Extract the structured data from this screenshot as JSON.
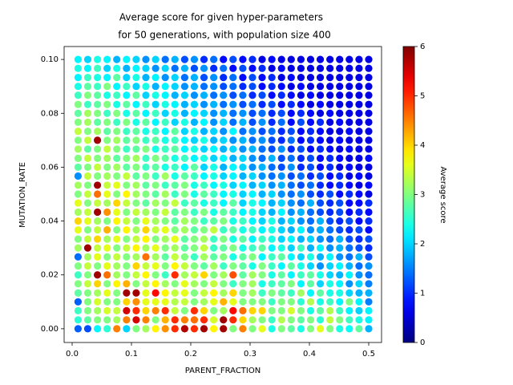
{
  "chart_data": {
    "type": "scatter",
    "title": [
      "Average score for given hyper-parameters",
      "for 50 generations, with population size 400"
    ],
    "x_label": "PARENT_FRACTION",
    "y_label": "MUTATION_RATE",
    "colorbar_label": "Average score",
    "colormap": "jet",
    "xlim": [
      -0.0135,
      0.5216
    ],
    "ylim": [
      -0.0051,
      0.1048
    ],
    "xticks": [
      {
        "value": 0,
        "label": "0.0"
      },
      0.1,
      0.2,
      0.3,
      0.4,
      0.5
    ],
    "yticks": [
      {
        "value": 0,
        "label": "0.00"
      },
      {
        "value": 0.02,
        "label": "0.02"
      },
      {
        "value": 0.04,
        "label": "0.04"
      },
      {
        "value": 0.06,
        "label": "0.06"
      },
      {
        "value": 0.08,
        "label": "0.08"
      },
      {
        "value": 0.1,
        "label": "0.10"
      }
    ],
    "zlim": [
      0,
      6
    ],
    "zticks": [
      0,
      1,
      2,
      3,
      4,
      5,
      6
    ],
    "x": [
      0.01,
      0.0263,
      0.0427,
      0.059,
      0.0753,
      0.0917,
      0.108,
      0.1243,
      0.1407,
      0.157,
      0.1733,
      0.1897,
      0.206,
      0.2223,
      0.2387,
      0.255,
      0.2713,
      0.2877,
      0.304,
      0.3203,
      0.3367,
      0.353,
      0.3693,
      0.3857,
      0.402,
      0.4183,
      0.4347,
      0.451,
      0.4673,
      0.4837,
      0.5
    ],
    "y": [
      0,
      0.0033,
      0.0067,
      0.01,
      0.0133,
      0.0167,
      0.02,
      0.0233,
      0.0267,
      0.03,
      0.0333,
      0.0367,
      0.04,
      0.0433,
      0.0467,
      0.05,
      0.0533,
      0.0567,
      0.06,
      0.0633,
      0.0667,
      0.07,
      0.0733,
      0.0767,
      0.08,
      0.0833,
      0.0867,
      0.09,
      0.0933,
      0.0967,
      0.1
    ],
    "z": [
      [
        1.3,
        1.2,
        2.2,
        2.5,
        4.5,
        2.0,
        3.0,
        3.2,
        3.8,
        4.4,
        5.0,
        5.7,
        5.0,
        5.8,
        3.8,
        5.8,
        3.0,
        4.5,
        3.0,
        3.6,
        2.4,
        3.0,
        2.8,
        2.4,
        3.0,
        3.6,
        3.0,
        2.4,
        2.3,
        2.8,
        1.8
      ],
      [
        2.5,
        2.8,
        3.0,
        3.0,
        3.2,
        4.5,
        5.5,
        4.5,
        3.0,
        4.2,
        5.0,
        4.5,
        4.6,
        5.0,
        3.5,
        5.8,
        5.0,
        4.0,
        3.2,
        3.0,
        2.6,
        3.3,
        3.0,
        2.8,
        3.0,
        2.5,
        3.4,
        3.0,
        2.6,
        2.4,
        2.2
      ],
      [
        2.6,
        3.0,
        3.2,
        3.5,
        3.4,
        5.5,
        5.0,
        4.0,
        4.5,
        5.0,
        3.4,
        3.0,
        5.0,
        4.0,
        3.0,
        3.2,
        5.2,
        4.6,
        4.0,
        4.0,
        3.0,
        3.0,
        3.5,
        3.0,
        2.4,
        2.8,
        3.3,
        2.6,
        2.2,
        2.0,
        2.2
      ],
      [
        1.3,
        3.0,
        3.5,
        3.0,
        3.0,
        4.0,
        4.4,
        3.6,
        3.6,
        3.6,
        3.3,
        3.4,
        3.0,
        3.2,
        3.6,
        4.2,
        3.6,
        3.0,
        3.0,
        3.0,
        2.6,
        3.0,
        3.0,
        2.5,
        3.3,
        2.4,
        2.6,
        2.2,
        3.0,
        2.2,
        1.5
      ],
      [
        2.8,
        3.0,
        3.2,
        3.6,
        3.0,
        5.8,
        5.8,
        3.6,
        5.2,
        3.8,
        3.4,
        3.6,
        3.0,
        3.4,
        3.8,
        3.2,
        4.0,
        3.0,
        3.2,
        2.6,
        3.0,
        2.8,
        2.6,
        3.2,
        2.2,
        2.8,
        2.4,
        2.4,
        2.0,
        1.8,
        1.8
      ],
      [
        3.0,
        3.4,
        4.0,
        3.0,
        3.8,
        4.2,
        3.0,
        3.4,
        3.8,
        3.2,
        3.0,
        3.6,
        3.2,
        3.0,
        3.4,
        3.0,
        2.6,
        3.0,
        3.2,
        2.4,
        2.6,
        2.8,
        3.0,
        2.2,
        2.8,
        2.0,
        2.4,
        2.2,
        1.6,
        2.0,
        1.5
      ],
      [
        2.6,
        3.0,
        5.8,
        4.6,
        3.2,
        3.0,
        3.4,
        3.8,
        3.0,
        2.6,
        5.0,
        3.2,
        3.4,
        4.0,
        3.0,
        3.2,
        4.8,
        2.8,
        3.2,
        3.0,
        2.4,
        2.8,
        2.2,
        2.6,
        2.8,
        2.4,
        2.0,
        1.8,
        2.2,
        1.6,
        1.4
      ],
      [
        3.0,
        3.4,
        3.0,
        3.6,
        3.2,
        3.0,
        4.0,
        3.4,
        3.6,
        3.0,
        3.8,
        3.4,
        3.0,
        2.8,
        3.2,
        2.6,
        3.0,
        2.8,
        2.4,
        3.0,
        2.6,
        2.2,
        2.8,
        2.4,
        2.0,
        1.6,
        2.0,
        2.2,
        1.8,
        1.4,
        1.6
      ],
      [
        1.4,
        3.2,
        3.6,
        3.0,
        3.4,
        3.0,
        3.2,
        4.6,
        3.2,
        2.8,
        3.4,
        3.0,
        2.6,
        3.2,
        2.8,
        3.0,
        2.4,
        2.8,
        3.0,
        2.2,
        2.6,
        2.8,
        2.2,
        2.0,
        2.4,
        1.8,
        2.2,
        1.6,
        1.4,
        1.8,
        1.2
      ],
      [
        3.2,
        5.8,
        3.4,
        3.6,
        3.0,
        3.4,
        3.8,
        3.2,
        3.6,
        3.0,
        3.2,
        2.8,
        3.0,
        3.4,
        2.6,
        2.8,
        3.0,
        2.4,
        2.6,
        2.8,
        2.2,
        2.4,
        2.0,
        2.6,
        1.8,
        2.2,
        1.6,
        1.8,
        1.4,
        1.2,
        1.0
      ],
      [
        3.0,
        3.4,
        4.0,
        3.2,
        3.6,
        3.0,
        3.4,
        3.8,
        3.0,
        3.2,
        3.6,
        2.8,
        3.0,
        3.2,
        2.6,
        3.0,
        2.4,
        2.8,
        2.2,
        2.6,
        2.4,
        2.0,
        2.2,
        1.8,
        2.0,
        1.6,
        1.4,
        1.8,
        1.2,
        1.0,
        1.2
      ],
      [
        3.6,
        3.0,
        3.4,
        4.2,
        3.0,
        3.8,
        3.2,
        4.0,
        3.4,
        3.6,
        3.0,
        3.2,
        2.8,
        3.0,
        3.4,
        2.6,
        2.8,
        2.4,
        2.6,
        2.2,
        2.4,
        2.0,
        1.8,
        2.2,
        1.6,
        1.8,
        1.4,
        1.2,
        1.0,
        1.2,
        0.8
      ],
      [
        4.0,
        3.6,
        3.2,
        3.0,
        3.8,
        3.4,
        3.0,
        3.6,
        3.2,
        3.0,
        2.8,
        3.2,
        3.0,
        2.6,
        2.8,
        3.0,
        2.4,
        2.6,
        2.2,
        2.0,
        2.4,
        1.8,
        2.0,
        1.6,
        1.4,
        1.8,
        1.2,
        1.0,
        1.2,
        0.8,
        1.0
      ],
      [
        3.2,
        3.4,
        5.8,
        4.4,
        3.6,
        3.0,
        3.4,
        3.2,
        3.0,
        3.4,
        2.8,
        3.0,
        2.6,
        3.0,
        2.4,
        2.8,
        2.6,
        2.2,
        2.4,
        2.0,
        1.8,
        2.2,
        1.6,
        1.8,
        1.4,
        1.2,
        1.0,
        1.2,
        0.8,
        1.0,
        0.8
      ],
      [
        3.6,
        3.0,
        3.4,
        3.2,
        4.0,
        3.4,
        3.0,
        2.8,
        3.2,
        3.0,
        3.4,
        2.6,
        2.8,
        2.4,
        2.6,
        2.2,
        2.8,
        2.0,
        2.4,
        2.2,
        1.8,
        2.0,
        1.6,
        1.4,
        1.8,
        1.2,
        1.0,
        1.2,
        0.8,
        0.8,
        1.0
      ],
      [
        3.0,
        3.4,
        4.6,
        3.6,
        3.0,
        3.8,
        3.2,
        3.0,
        2.8,
        3.2,
        2.6,
        3.0,
        2.4,
        2.8,
        2.6,
        2.2,
        2.4,
        2.0,
        2.2,
        1.8,
        2.0,
        1.6,
        1.4,
        1.6,
        1.2,
        1.0,
        1.2,
        0.8,
        1.0,
        0.8,
        0.6
      ],
      [
        3.2,
        3.0,
        5.8,
        3.4,
        3.6,
        3.0,
        3.2,
        2.8,
        3.0,
        2.6,
        2.8,
        3.0,
        2.4,
        2.6,
        2.2,
        2.4,
        2.0,
        2.2,
        1.8,
        2.0,
        1.6,
        1.8,
        1.4,
        1.2,
        1.4,
        1.0,
        0.8,
        1.0,
        0.8,
        0.6,
        0.8
      ],
      [
        1.6,
        3.4,
        3.0,
        3.2,
        3.0,
        3.4,
        2.8,
        3.0,
        2.6,
        3.2,
        2.4,
        2.8,
        2.6,
        2.2,
        2.4,
        2.0,
        2.2,
        1.8,
        2.0,
        1.6,
        1.4,
        1.6,
        1.2,
        1.4,
        1.0,
        1.2,
        0.8,
        1.0,
        0.6,
        0.8,
        0.6
      ],
      [
        2.8,
        3.0,
        3.4,
        3.0,
        3.2,
        2.8,
        3.0,
        2.6,
        2.8,
        2.4,
        2.6,
        2.2,
        2.8,
        2.0,
        2.4,
        1.8,
        2.2,
        2.0,
        1.6,
        1.8,
        1.4,
        1.2,
        1.6,
        1.0,
        1.2,
        0.8,
        1.0,
        0.6,
        0.8,
        0.6,
        0.6
      ],
      [
        3.0,
        3.4,
        3.0,
        3.2,
        2.8,
        3.0,
        3.2,
        2.6,
        3.0,
        2.8,
        2.4,
        2.6,
        2.2,
        2.4,
        2.0,
        2.2,
        1.8,
        2.0,
        1.6,
        1.4,
        1.8,
        1.2,
        1.4,
        1.0,
        1.2,
        0.8,
        1.0,
        0.8,
        0.6,
        0.6,
        0.8
      ],
      [
        3.2,
        2.8,
        3.0,
        3.4,
        3.0,
        2.6,
        2.8,
        3.0,
        2.4,
        2.6,
        2.8,
        2.2,
        2.4,
        2.0,
        2.2,
        1.8,
        2.0,
        1.6,
        1.8,
        1.4,
        1.2,
        1.6,
        1.0,
        1.2,
        0.8,
        1.0,
        0.8,
        0.6,
        0.8,
        0.6,
        0.6
      ],
      [
        3.0,
        3.4,
        5.8,
        3.0,
        3.2,
        2.8,
        3.0,
        2.6,
        2.8,
        2.4,
        2.6,
        2.2,
        2.0,
        2.4,
        1.8,
        2.0,
        1.6,
        1.8,
        1.4,
        1.6,
        1.2,
        1.0,
        1.4,
        0.8,
        1.0,
        0.8,
        0.6,
        0.8,
        0.6,
        0.6,
        0.6
      ],
      [
        3.4,
        3.0,
        3.2,
        2.8,
        3.0,
        2.6,
        2.8,
        2.4,
        2.6,
        2.2,
        2.8,
        2.0,
        2.4,
        1.8,
        2.0,
        1.6,
        2.2,
        1.4,
        1.6,
        1.2,
        1.4,
        1.0,
        1.2,
        0.8,
        1.0,
        0.8,
        0.6,
        0.6,
        0.8,
        0.6,
        0.6
      ],
      [
        3.0,
        3.2,
        2.8,
        3.0,
        2.6,
        3.0,
        2.4,
        2.8,
        2.2,
        2.6,
        2.0,
        2.4,
        1.8,
        2.2,
        1.6,
        2.0,
        1.4,
        1.8,
        1.2,
        1.6,
        1.0,
        1.4,
        0.8,
        1.2,
        0.8,
        1.0,
        0.6,
        0.8,
        0.6,
        0.6,
        0.6
      ],
      [
        2.8,
        3.2,
        3.0,
        2.6,
        3.0,
        2.4,
        2.8,
        2.2,
        2.6,
        2.0,
        2.4,
        1.8,
        2.2,
        2.0,
        1.6,
        1.8,
        1.4,
        1.6,
        1.2,
        1.4,
        1.0,
        1.2,
        0.8,
        1.0,
        0.8,
        0.6,
        0.8,
        0.6,
        0.6,
        0.6,
        0.6
      ],
      [
        3.0,
        2.6,
        2.8,
        3.0,
        2.4,
        2.8,
        2.2,
        2.6,
        2.0,
        2.4,
        2.2,
        1.8,
        2.0,
        1.6,
        1.8,
        1.4,
        1.6,
        1.2,
        1.4,
        1.0,
        1.2,
        0.8,
        1.0,
        0.8,
        0.6,
        0.8,
        0.6,
        0.6,
        0.6,
        0.6,
        0.6
      ],
      [
        2.6,
        3.0,
        2.8,
        2.4,
        2.6,
        2.2,
        2.8,
        2.0,
        2.4,
        2.2,
        1.8,
        2.0,
        1.6,
        1.8,
        1.4,
        1.6,
        1.2,
        1.4,
        1.0,
        1.2,
        0.8,
        1.0,
        0.8,
        0.6,
        0.8,
        0.6,
        0.6,
        0.6,
        0.6,
        0.6,
        0.6
      ],
      [
        2.4,
        2.8,
        2.6,
        3.0,
        2.2,
        2.6,
        2.0,
        2.4,
        1.8,
        2.2,
        2.0,
        1.6,
        1.8,
        1.4,
        1.6,
        1.2,
        1.4,
        1.0,
        1.2,
        0.8,
        1.0,
        0.8,
        0.6,
        0.8,
        0.6,
        0.6,
        0.6,
        0.6,
        0.6,
        0.6,
        0.6
      ],
      [
        2.2,
        2.6,
        2.4,
        2.2,
        2.8,
        2.0,
        2.4,
        1.8,
        2.2,
        1.6,
        2.0,
        1.4,
        1.8,
        1.2,
        1.6,
        1.0,
        1.4,
        0.8,
        1.2,
        0.8,
        1.0,
        0.6,
        0.8,
        0.6,
        0.6,
        0.6,
        0.6,
        0.6,
        0.6,
        0.6,
        0.6
      ],
      [
        2.4,
        2.2,
        2.6,
        2.0,
        2.4,
        1.8,
        2.2,
        2.0,
        1.6,
        2.0,
        1.4,
        1.8,
        1.2,
        1.6,
        1.0,
        1.4,
        0.8,
        1.2,
        0.8,
        1.0,
        0.6,
        0.8,
        0.6,
        0.6,
        0.6,
        0.6,
        0.6,
        0.6,
        0.6,
        0.6,
        0.6
      ],
      [
        2.2,
        2.0,
        2.4,
        2.2,
        1.8,
        2.2,
        2.0,
        1.6,
        2.0,
        1.4,
        1.8,
        1.2,
        1.6,
        1.0,
        1.4,
        0.8,
        1.2,
        0.8,
        1.0,
        0.6,
        0.8,
        0.6,
        0.6,
        0.6,
        0.6,
        0.6,
        0.6,
        0.6,
        0.6,
        0.6,
        0.6
      ]
    ]
  }
}
